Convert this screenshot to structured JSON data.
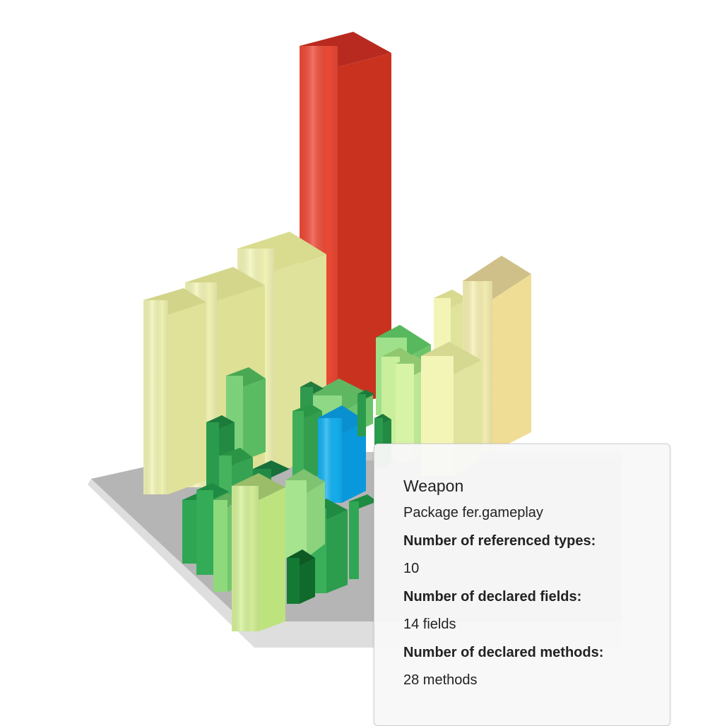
{
  "colors": {
    "background": "#ffffff",
    "base_top": "#b5b5b5",
    "base_edge": "#d4d4d4",
    "selected": "#0aa7ec",
    "red": "#e83c2c",
    "pale_yellow": "#f2f5b4",
    "cream": "#f5f0b4",
    "light_green": "#a7e08a",
    "green": "#3fb35c",
    "dark_green": "#1f8c45",
    "darkest_green": "#156f33"
  },
  "tooltip": {
    "class_name": "Weapon",
    "package_line": "Package fer.gameplay",
    "rows": [
      {
        "label": "Number of referenced types:",
        "value": "10"
      },
      {
        "label": "Number of declared fields:",
        "value": "14 fields"
      },
      {
        "label": "Number of declared methods:",
        "value": "28 methods"
      }
    ]
  }
}
